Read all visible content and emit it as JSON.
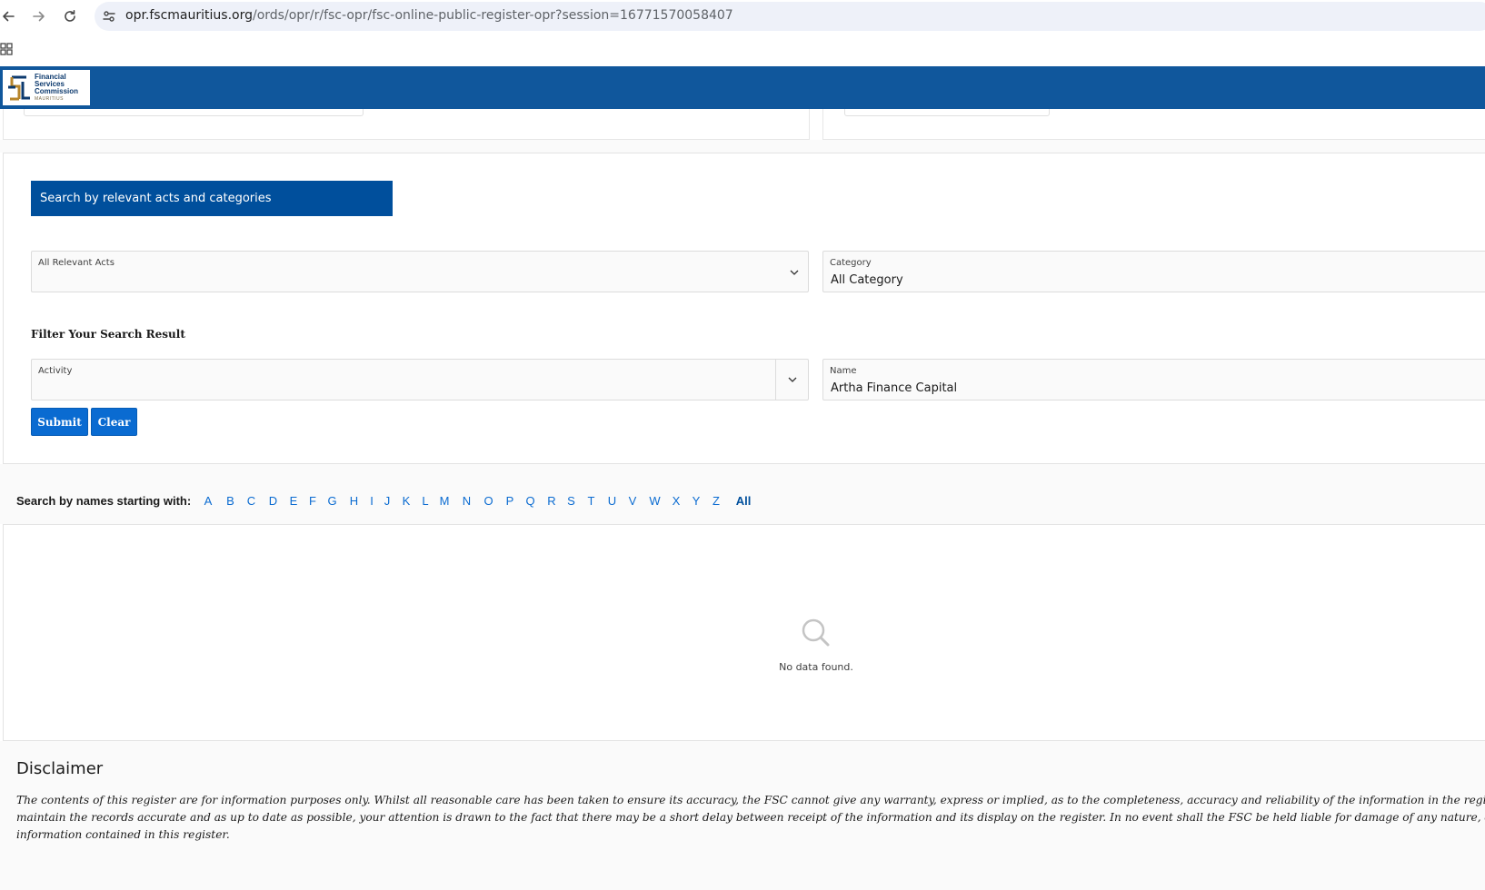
{
  "browser": {
    "url_host": "opr.fscmauritius.org",
    "url_path": "/ords/opr/r/fsc-opr/fsc-online-public-register-opr?session=16771570058407",
    "back_icon": "arrow-left-icon",
    "forward_icon": "arrow-right-icon",
    "reload_icon": "reload-icon",
    "site_info_icon": "tune-icon",
    "apps_icon": "grid-icon"
  },
  "header": {
    "logo_line1": "Financial",
    "logo_line2": "Services",
    "logo_line3": "Commission",
    "logo_line4": "MAURITIUS",
    "bg_color": "#10579c"
  },
  "search": {
    "banner": "Search by relevant acts and categories",
    "acts_label": "All Relevant Acts",
    "acts_value": "",
    "category_label": "Category",
    "category_value": "All Category",
    "filter_title": "Filter Your Search Result",
    "activity_label": "Activity",
    "activity_value": "",
    "name_label": "Name",
    "name_value": "Artha Finance Capital",
    "submit_label": "Submit",
    "clear_label": "Clear"
  },
  "alphabet": {
    "label": "Search by names starting with:",
    "letters": [
      "A",
      "B",
      "C",
      "D",
      "E",
      "F",
      "G",
      "H",
      "I",
      "J",
      "K",
      "L",
      "M",
      "N",
      "O",
      "P",
      "Q",
      "R",
      "S",
      "T",
      "U",
      "V",
      "W",
      "X",
      "Y",
      "Z"
    ],
    "all_label": "All"
  },
  "results": {
    "empty_icon": "search-icon",
    "empty_text": "No data found."
  },
  "disclaimer": {
    "title": "Disclaimer",
    "line1": "The contents of this register are for information purposes only. Whilst all reasonable care has been taken to ensure its accuracy, the FSC cannot give any warranty, express or implied, as to the completeness, accuracy and reliability of the information in the register. Altho",
    "line2": "maintain the records accurate and as up to date as possible, your attention is drawn to the fact that there may be a short delay between receipt of the information and its display on the register. In no event shall the FSC be held liable for damage of any nature, direct or",
    "line3": "information contained in this register."
  }
}
